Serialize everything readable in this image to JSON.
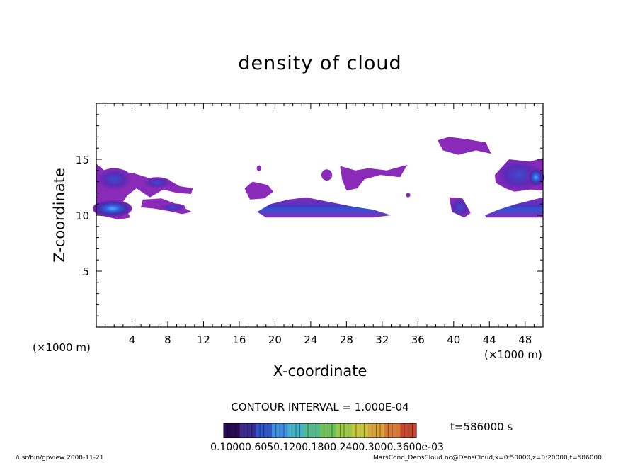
{
  "chart_data": {
    "type": "heatmap",
    "title": "density of cloud",
    "xlabel": "X-coordinate",
    "ylabel": "Z-coordinate",
    "x_unit": "(×1000 m)",
    "xlim": [
      0,
      50
    ],
    "ylim": [
      0,
      20
    ],
    "xticks": [
      "4",
      "8",
      "12",
      "16",
      "20",
      "24",
      "28",
      "32",
      "36",
      "40",
      "44",
      "48"
    ],
    "yticks": [
      "5",
      "10",
      "15"
    ],
    "contour_interval": "CONTOUR INTERVAL = 1.000E-04",
    "time_label": "t=586000 s",
    "colorbar_labels_text": "0.10000.6050.1200.1800.2400.3000.3600e-03",
    "colorbar_colors": [
      "#2a0a55",
      "#3a2b8f",
      "#2f55c8",
      "#3f8fe0",
      "#46b4c8",
      "#52b98a",
      "#6ec25a",
      "#9bc94a",
      "#c8c640",
      "#d8a43a",
      "#d87a35",
      "#c8462e"
    ],
    "cloud_regions": [
      {
        "name": "left-upper band",
        "x": [
          0,
          10.8
        ],
        "z": [
          11.8,
          14.5
        ],
        "density": "low to moderate"
      },
      {
        "name": "left-lower band",
        "x": [
          0,
          11
        ],
        "z": [
          9.6,
          12.6
        ],
        "density": "moderate to high"
      },
      {
        "name": "central lower band",
        "x": [
          18,
          33
        ],
        "z": [
          9.8,
          11.6
        ],
        "density": "moderate"
      },
      {
        "name": "central small patches",
        "x": [
          16.5,
          35
        ],
        "z": [
          11.2,
          14.5
        ],
        "density": "low"
      },
      {
        "name": "upper right patch",
        "x": [
          38,
          44
        ],
        "z": [
          15.5,
          17
        ],
        "density": "low"
      },
      {
        "name": "right small patch",
        "x": [
          39.5,
          42
        ],
        "z": [
          10,
          11.6
        ],
        "density": "moderate"
      },
      {
        "name": "right edge bands",
        "x": [
          43.5,
          50
        ],
        "z": [
          9.8,
          15
        ],
        "density": "moderate to high"
      }
    ]
  },
  "footer": {
    "left": "/usr/bin/gpview  2008-11-21",
    "right": "MarsCond_DensCloud.nc@DensCloud,x=0:50000,z=0:20000,t=586000"
  }
}
